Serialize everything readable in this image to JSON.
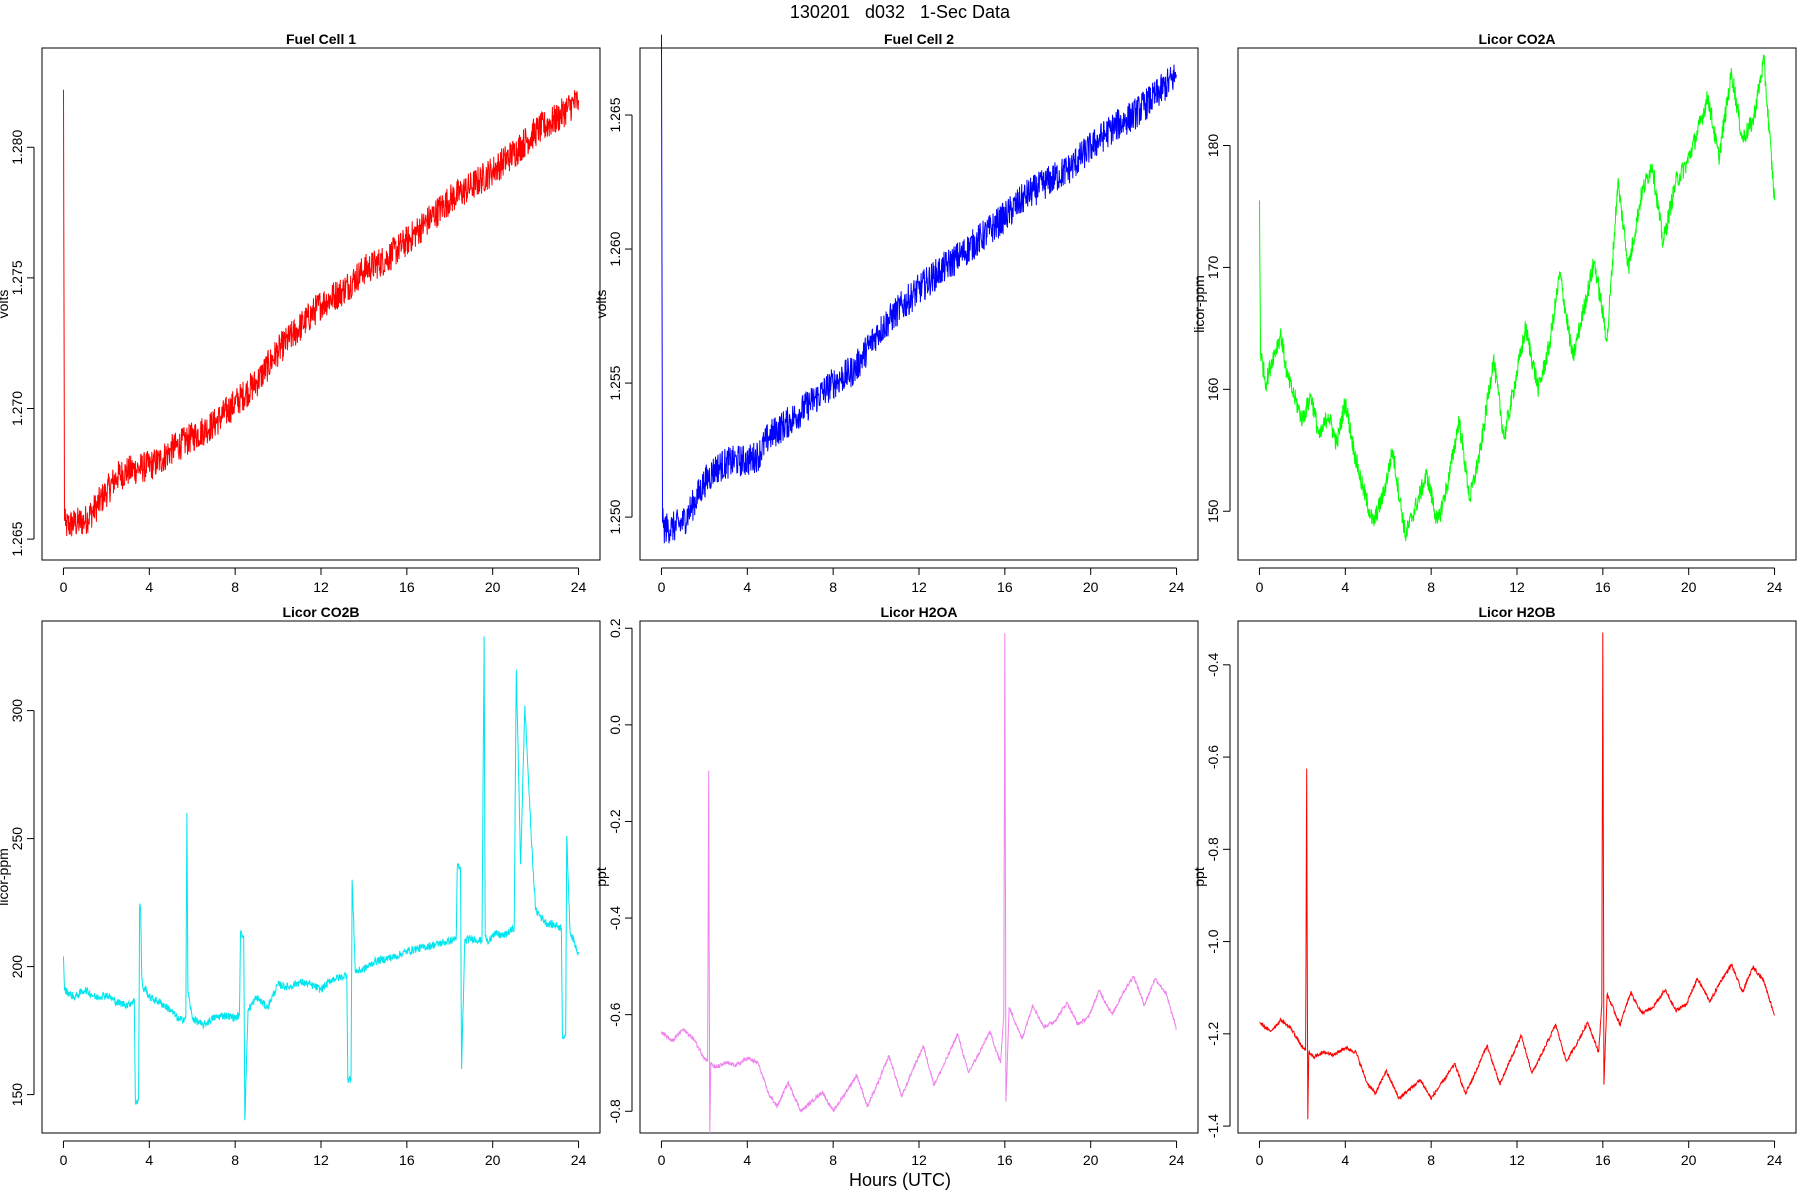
{
  "header": {
    "title": "130201   d032   1-Sec Data"
  },
  "footer": {
    "xlabel": "Hours (UTC)"
  },
  "chart_data": [
    {
      "type": "line",
      "title": "Fuel Cell 1",
      "ylabel": "volts",
      "color": "#ff0000",
      "xlim": [
        -1.0,
        25.0
      ],
      "ylim": [
        1.2642,
        1.2838
      ],
      "xticks": [
        "0",
        "4",
        "8",
        "12",
        "16",
        "20",
        "24"
      ],
      "yticks": [
        "1.265",
        "1.270",
        "1.275",
        "1.280"
      ],
      "series": [
        {
          "x": [
            0,
            0.05,
            0.1,
            0.5,
            1,
            1.5,
            2,
            2.5,
            3,
            3.5,
            4,
            4.5,
            5,
            6,
            7,
            8,
            9,
            10,
            11,
            12,
            13,
            14,
            15,
            16,
            17,
            18,
            19,
            20,
            21,
            22,
            23,
            23.5,
            24
          ],
          "y": [
            1.2822,
            1.2657,
            1.2655,
            1.2656,
            1.2657,
            1.2662,
            1.2668,
            1.2674,
            1.2676,
            1.2677,
            1.2678,
            1.268,
            1.2684,
            1.2689,
            1.2694,
            1.2702,
            1.271,
            1.2722,
            1.2731,
            1.274,
            1.2745,
            1.2753,
            1.2757,
            1.2764,
            1.2772,
            1.278,
            1.2785,
            1.2791,
            1.2798,
            1.2806,
            1.2811,
            1.2815,
            1.2818
          ],
          "noise": 0.0006
        }
      ]
    },
    {
      "type": "line",
      "title": "Fuel Cell 2",
      "ylabel": "volts",
      "color": "#0000ff",
      "xlim": [
        -1.0,
        25.0
      ],
      "ylim": [
        1.2484,
        1.2675
      ],
      "xticks": [
        "0",
        "4",
        "8",
        "12",
        "16",
        "20",
        "24"
      ],
      "yticks": [
        "1.250",
        "1.255",
        "1.260",
        "1.265"
      ],
      "series": [
        {
          "x": [
            0,
            0.05,
            0.1,
            0.5,
            1,
            1.5,
            2,
            2.5,
            3,
            3.5,
            4,
            4.5,
            5,
            6,
            7,
            8,
            9,
            10,
            11,
            12,
            13,
            14,
            15,
            16,
            17,
            18,
            19,
            20,
            21,
            22,
            23,
            23.5,
            24
          ],
          "y": [
            1.268,
            1.2498,
            1.2496,
            1.2496,
            1.2498,
            1.2505,
            1.2513,
            1.2518,
            1.252,
            1.2521,
            1.2521,
            1.2523,
            1.253,
            1.2536,
            1.2543,
            1.255,
            1.2555,
            1.2568,
            1.2577,
            1.2585,
            1.2592,
            1.2598,
            1.2605,
            1.2612,
            1.262,
            1.2625,
            1.263,
            1.2638,
            1.2645,
            1.265,
            1.2657,
            1.2661,
            1.2665
          ],
          "noise": 0.0006
        }
      ]
    },
    {
      "type": "line",
      "title": "Licor CO2A",
      "ylabel": "licor-ppm",
      "color": "#00ff00",
      "xlim": [
        -1.0,
        25.0
      ],
      "ylim": [
        146.0,
        188.0
      ],
      "xticks": [
        "0",
        "4",
        "8",
        "12",
        "16",
        "20",
        "24"
      ],
      "yticks": [
        "150",
        "160",
        "170",
        "180"
      ],
      "series": [
        {
          "x": [
            0,
            0.05,
            0.3,
            0.6,
            1.0,
            1.3,
            1.6,
            2.0,
            2.4,
            2.8,
            3.2,
            3.6,
            4.0,
            4.4,
            4.8,
            5.3,
            5.8,
            6.2,
            6.8,
            7.3,
            7.8,
            8.3,
            8.8,
            9.3,
            9.8,
            10.3,
            10.9,
            11.4,
            11.9,
            12.4,
            13.0,
            13.5,
            14.0,
            14.6,
            15.1,
            15.6,
            16.2,
            16.7,
            17.2,
            17.8,
            18.3,
            18.8,
            19.4,
            19.9,
            20.4,
            20.9,
            21.4,
            22.0,
            22.5,
            23.0,
            23.5,
            24.0
          ],
          "y": [
            175.5,
            163.0,
            160.5,
            162.5,
            164.5,
            161.0,
            159.5,
            157.5,
            159.5,
            156.0,
            158.0,
            155.5,
            159.0,
            155.0,
            152.0,
            149.0,
            151.5,
            155.0,
            148.0,
            150.5,
            153.0,
            149.0,
            152.5,
            157.5,
            151.0,
            155.0,
            162.5,
            156.0,
            160.5,
            165.0,
            160.0,
            163.5,
            169.5,
            162.5,
            166.5,
            170.5,
            164.0,
            177.0,
            170.0,
            176.0,
            178.5,
            172.0,
            177.0,
            178.5,
            181.0,
            184.0,
            179.0,
            186.0,
            180.5,
            182.0,
            187.0,
            175.5
          ],
          "noise": 0.8
        }
      ]
    },
    {
      "type": "line",
      "title": "Licor CO2B",
      "ylabel": "licor-ppm",
      "color": "#00e5ee",
      "xlim": [
        -1.0,
        25.0
      ],
      "ylim": [
        135.0,
        335.0
      ],
      "xticks": [
        "0",
        "4",
        "8",
        "12",
        "16",
        "20",
        "24"
      ],
      "yticks": [
        "150",
        "200",
        "250",
        "300"
      ],
      "series": [
        {
          "x": [
            0,
            0.05,
            0.5,
            1.0,
            1.5,
            2.0,
            2.5,
            3.0,
            3.3,
            3.35,
            3.5,
            3.55,
            3.6,
            3.65,
            3.75,
            3.8,
            4.0,
            4.5,
            5.0,
            5.4,
            5.7,
            5.75,
            5.8,
            6.0,
            6.5,
            7.0,
            7.5,
            8.0,
            8.2,
            8.25,
            8.4,
            8.45,
            8.6,
            9.0,
            9.5,
            10.0,
            10.5,
            11.0,
            11.5,
            12.0,
            12.5,
            13.0,
            13.2,
            13.25,
            13.4,
            13.45,
            13.6,
            14.0,
            14.5,
            15.0,
            15.5,
            16.0,
            16.5,
            17.0,
            17.5,
            18.0,
            18.3,
            18.35,
            18.5,
            18.55,
            18.7,
            19.0,
            19.5,
            19.6,
            19.65,
            19.8,
            20.0,
            20.5,
            21.0,
            21.1,
            21.3,
            21.5,
            21.8,
            22.0,
            22.5,
            23.0,
            23.2,
            23.25,
            23.4,
            23.45,
            23.6,
            24.0
          ],
          "y": [
            204.0,
            191.0,
            188.0,
            191.0,
            188.0,
            189.0,
            186.0,
            185.0,
            187.0,
            147.0,
            148.0,
            224.0,
            222.0,
            195.0,
            190.0,
            192.0,
            188.0,
            186.0,
            183.0,
            179.0,
            180.0,
            260.0,
            190.0,
            180.0,
            177.0,
            180.0,
            181.0,
            180.0,
            181.0,
            213.0,
            212.0,
            140.0,
            183.0,
            188.0,
            184.0,
            193.0,
            192.0,
            194.0,
            193.0,
            191.0,
            195.0,
            196.0,
            197.0,
            156.0,
            156.0,
            234.0,
            198.0,
            199.0,
            202.0,
            203.0,
            204.0,
            206.0,
            207.0,
            208.0,
            209.0,
            210.0,
            211.0,
            239.0,
            238.0,
            160.0,
            210.0,
            211.0,
            210.0,
            329.0,
            212.0,
            209.0,
            213.0,
            212.0,
            215.0,
            316.0,
            240.0,
            302.0,
            250.0,
            222.0,
            217.0,
            216.0,
            215.0,
            173.0,
            173.0,
            251.0,
            214.0,
            205.0
          ],
          "noise": 1.5
        }
      ]
    },
    {
      "type": "line",
      "title": "Licor H2OA",
      "ylabel": "ppt",
      "color": "#ee82ee",
      "xlim": [
        -1.0,
        25.0
      ],
      "ylim": [
        -0.845,
        0.215
      ],
      "xticks": [
        "0",
        "4",
        "8",
        "12",
        "16",
        "20",
        "24"
      ],
      "yticks": [
        "-0.8",
        "-0.6",
        "-0.4",
        "-0.2",
        "0.0",
        "0.2"
      ],
      "series": [
        {
          "x": [
            0,
            0.5,
            1.0,
            1.5,
            2.0,
            2.15,
            2.2,
            2.25,
            2.3,
            2.5,
            3.0,
            3.5,
            4.0,
            4.5,
            5.0,
            5.4,
            5.9,
            6.5,
            7.0,
            7.5,
            8.0,
            8.6,
            9.1,
            9.6,
            10.1,
            10.6,
            11.2,
            11.7,
            12.2,
            12.7,
            13.2,
            13.8,
            14.3,
            14.8,
            15.3,
            15.8,
            15.95,
            16.0,
            16.05,
            16.2,
            16.8,
            17.3,
            17.8,
            18.3,
            18.9,
            19.4,
            19.9,
            20.4,
            21.0,
            21.5,
            22.0,
            22.5,
            23.0,
            23.5,
            24.0
          ],
          "y": [
            -0.635,
            -0.655,
            -0.63,
            -0.65,
            -0.69,
            -0.695,
            -0.095,
            -0.845,
            -0.7,
            -0.71,
            -0.7,
            -0.705,
            -0.69,
            -0.7,
            -0.765,
            -0.79,
            -0.74,
            -0.8,
            -0.78,
            -0.76,
            -0.8,
            -0.76,
            -0.725,
            -0.79,
            -0.74,
            -0.685,
            -0.77,
            -0.715,
            -0.665,
            -0.745,
            -0.7,
            -0.64,
            -0.72,
            -0.68,
            -0.635,
            -0.7,
            -0.6,
            0.19,
            -0.78,
            -0.585,
            -0.65,
            -0.58,
            -0.625,
            -0.615,
            -0.575,
            -0.62,
            -0.605,
            -0.55,
            -0.6,
            -0.555,
            -0.52,
            -0.58,
            -0.525,
            -0.555,
            -0.63
          ],
          "noise": 0.004
        }
      ]
    },
    {
      "type": "line",
      "title": "Licor H2OB",
      "ylabel": "ppt",
      "color": "#ff0000",
      "xlim": [
        -1.0,
        25.0
      ],
      "ylim": [
        -1.415,
        -0.305
      ],
      "xticks": [
        "0",
        "4",
        "8",
        "12",
        "16",
        "20",
        "24"
      ],
      "yticks": [
        "-1.4",
        "-1.2",
        "-1.0",
        "-0.8",
        "-0.6",
        "-0.4"
      ],
      "series": [
        {
          "x": [
            0,
            0.5,
            1.0,
            1.5,
            2.0,
            2.15,
            2.2,
            2.25,
            2.3,
            2.5,
            3.0,
            3.5,
            4.0,
            4.5,
            5.0,
            5.4,
            5.9,
            6.5,
            7.0,
            7.5,
            8.0,
            8.6,
            9.1,
            9.6,
            10.1,
            10.6,
            11.2,
            11.7,
            12.2,
            12.7,
            13.2,
            13.8,
            14.3,
            14.8,
            15.3,
            15.8,
            15.95,
            16.0,
            16.05,
            16.2,
            16.8,
            17.3,
            17.8,
            18.3,
            18.9,
            19.4,
            19.9,
            20.4,
            21.0,
            21.5,
            22.0,
            22.5,
            23.0,
            23.5,
            24.0
          ],
          "y": [
            -1.175,
            -1.195,
            -1.17,
            -1.19,
            -1.23,
            -1.235,
            -0.625,
            -1.385,
            -1.24,
            -1.25,
            -1.24,
            -1.245,
            -1.23,
            -1.24,
            -1.305,
            -1.33,
            -1.28,
            -1.34,
            -1.32,
            -1.3,
            -1.34,
            -1.3,
            -1.265,
            -1.33,
            -1.28,
            -1.225,
            -1.31,
            -1.255,
            -1.205,
            -1.285,
            -1.24,
            -1.18,
            -1.26,
            -1.22,
            -1.175,
            -1.24,
            -1.14,
            -0.33,
            -1.31,
            -1.115,
            -1.18,
            -1.11,
            -1.155,
            -1.145,
            -1.105,
            -1.15,
            -1.135,
            -1.08,
            -1.13,
            -1.085,
            -1.05,
            -1.11,
            -1.055,
            -1.085,
            -1.16
          ],
          "noise": 0.004
        }
      ]
    }
  ]
}
